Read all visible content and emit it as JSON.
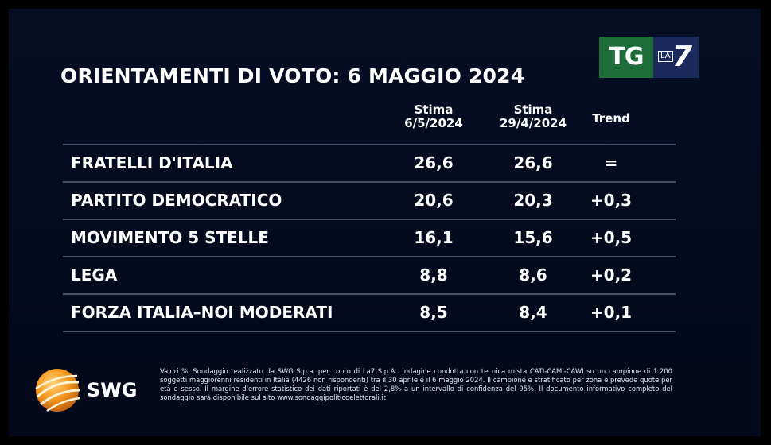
{
  "title": "ORIENTAMENTI DI VOTO: 6 MAGGIO 2024",
  "broadcaster_logo": {
    "tg": "TG",
    "la": "LA",
    "seven": "7",
    "colors": {
      "tg_bg": "#1f6e3a",
      "la7_bg": "#1b2a5c"
    }
  },
  "chart_data": {
    "type": "table",
    "columns": [
      {
        "key": "stima_current",
        "label_line1": "Stima",
        "label_line2": "6/5/2024"
      },
      {
        "key": "stima_previous",
        "label_line1": "Stima",
        "label_line2": "29/4/2024"
      },
      {
        "key": "trend",
        "label_line1": "Trend",
        "label_line2": ""
      }
    ],
    "rows": [
      {
        "party": "FRATELLI D'ITALIA",
        "stima_current": "26,6",
        "stima_previous": "26,6",
        "trend": "="
      },
      {
        "party": "PARTITO DEMOCRATICO",
        "stima_current": "20,6",
        "stima_previous": "20,3",
        "trend": "+0,3"
      },
      {
        "party": "MOVIMENTO 5 STELLE",
        "stima_current": "16,1",
        "stima_previous": "15,6",
        "trend": "+0,5"
      },
      {
        "party": "LEGA",
        "stima_current": "8,8",
        "stima_previous": "8,6",
        "trend": "+0,2"
      },
      {
        "party": "FORZA ITALIA–NOI MODERATI",
        "stima_current": "8,5",
        "stima_previous": "8,4",
        "trend": "+0,1"
      }
    ]
  },
  "footer": {
    "logo_text": "SWG",
    "logo_colors": {
      "globe": "#f39a1f",
      "globe_dark": "#c4620f"
    },
    "note": "Valori %. Sondaggio realizzato da SWG S.p.a. per conto di La7 S.p.A.. Indagine condotta con tecnica mista CATI-CAMI-CAWI su un campione di 1.200 soggetti maggiorenni residenti in Italia (4426 non rispondenti) tra il 30 aprile e il 6 maggio 2024. Il campione è stratificato per zona e prevede quote per età e sesso. Il margine d'errore statistico dei dati riportati è del 2,8% a un intervallo di confidenza del 95%. Il documento informativo completo del sondaggio sarà disponibile sul sito www.sondaggipoliticoelettorali.it"
  }
}
